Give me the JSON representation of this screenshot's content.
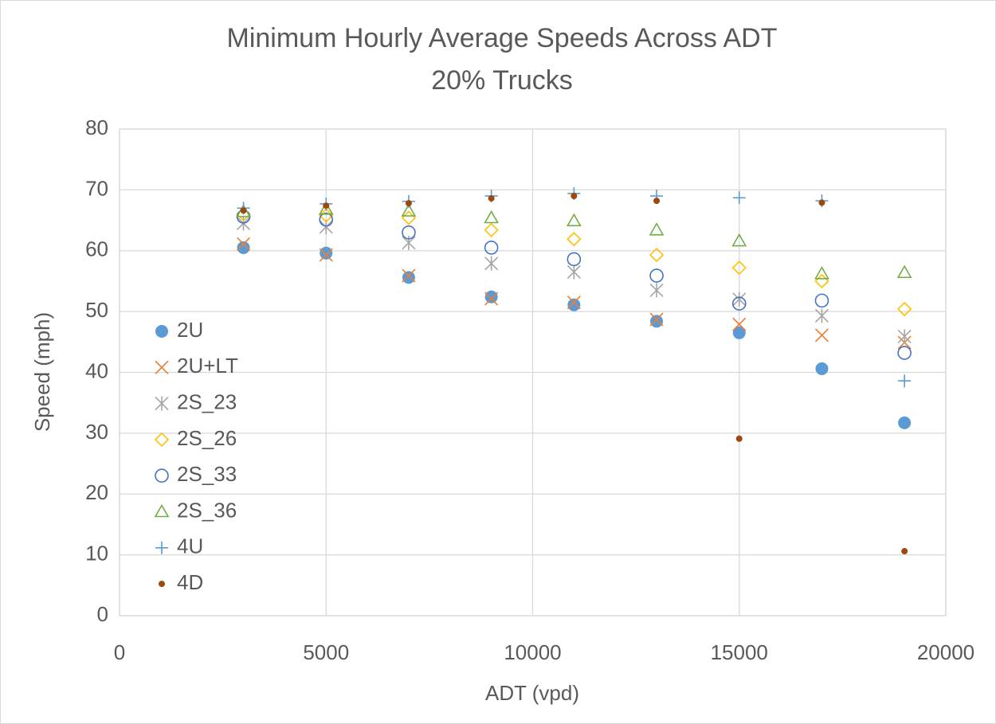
{
  "chart_data": {
    "type": "scatter",
    "title": "Minimum Hourly Average Speeds Across ADT",
    "subtitle": "20% Trucks",
    "x_label": "ADT (vpd)",
    "y_label": "Speed (mph)",
    "x": [
      3000,
      5000,
      7000,
      9000,
      11000,
      13000,
      15000,
      17000,
      19000
    ],
    "xlim": [
      0,
      20000
    ],
    "xticks": [
      0,
      5000,
      10000,
      15000,
      20000
    ],
    "ylim": [
      0,
      80
    ],
    "yticks": [
      0,
      10,
      20,
      30,
      40,
      50,
      60,
      70,
      80
    ],
    "grid": true,
    "legend": "left",
    "series": [
      {
        "name": "2U",
        "color": "#5b9bd5",
        "marker": "filled-circle",
        "values": [
          60.5,
          59.6,
          55.6,
          52.4,
          51.1,
          48.4,
          46.5,
          40.6,
          31.7
        ]
      },
      {
        "name": "2U+LT",
        "color": "#ed7d31",
        "marker": "x",
        "values": [
          61.1,
          59.3,
          55.9,
          52.1,
          51.5,
          48.7,
          47.9,
          46.1,
          44.9
        ]
      },
      {
        "name": "2S_23",
        "color": "#a5a5a5",
        "marker": "star",
        "values": [
          64.5,
          63.9,
          61.3,
          57.9,
          56.5,
          53.5,
          52.0,
          49.3,
          45.9
        ]
      },
      {
        "name": "2S_26",
        "color": "#ffc000",
        "marker": "diamond",
        "values": [
          66.0,
          65.8,
          65.4,
          63.4,
          61.9,
          59.3,
          57.2,
          55.0,
          50.4
        ]
      },
      {
        "name": "2S_33",
        "color": "#4472c4",
        "marker": "open-circle",
        "values": [
          65.6,
          65.1,
          63.0,
          60.5,
          58.6,
          55.9,
          51.3,
          51.8,
          43.2
        ]
      },
      {
        "name": "2S_36",
        "color": "#70ad47",
        "marker": "triangle",
        "values": [
          66.4,
          66.8,
          66.5,
          65.4,
          64.9,
          63.4,
          61.6,
          56.2,
          56.4
        ]
      },
      {
        "name": "4U",
        "color": "#5b9bd5",
        "marker": "plus",
        "values": [
          67.0,
          67.7,
          68.1,
          69.0,
          69.4,
          69.0,
          68.7,
          68.2,
          38.6
        ]
      },
      {
        "name": "4D",
        "color": "#9e480e",
        "marker": "dot",
        "values": [
          66.6,
          67.4,
          67.8,
          68.6,
          69.0,
          68.2,
          29.1,
          67.9,
          10.6
        ]
      }
    ]
  }
}
